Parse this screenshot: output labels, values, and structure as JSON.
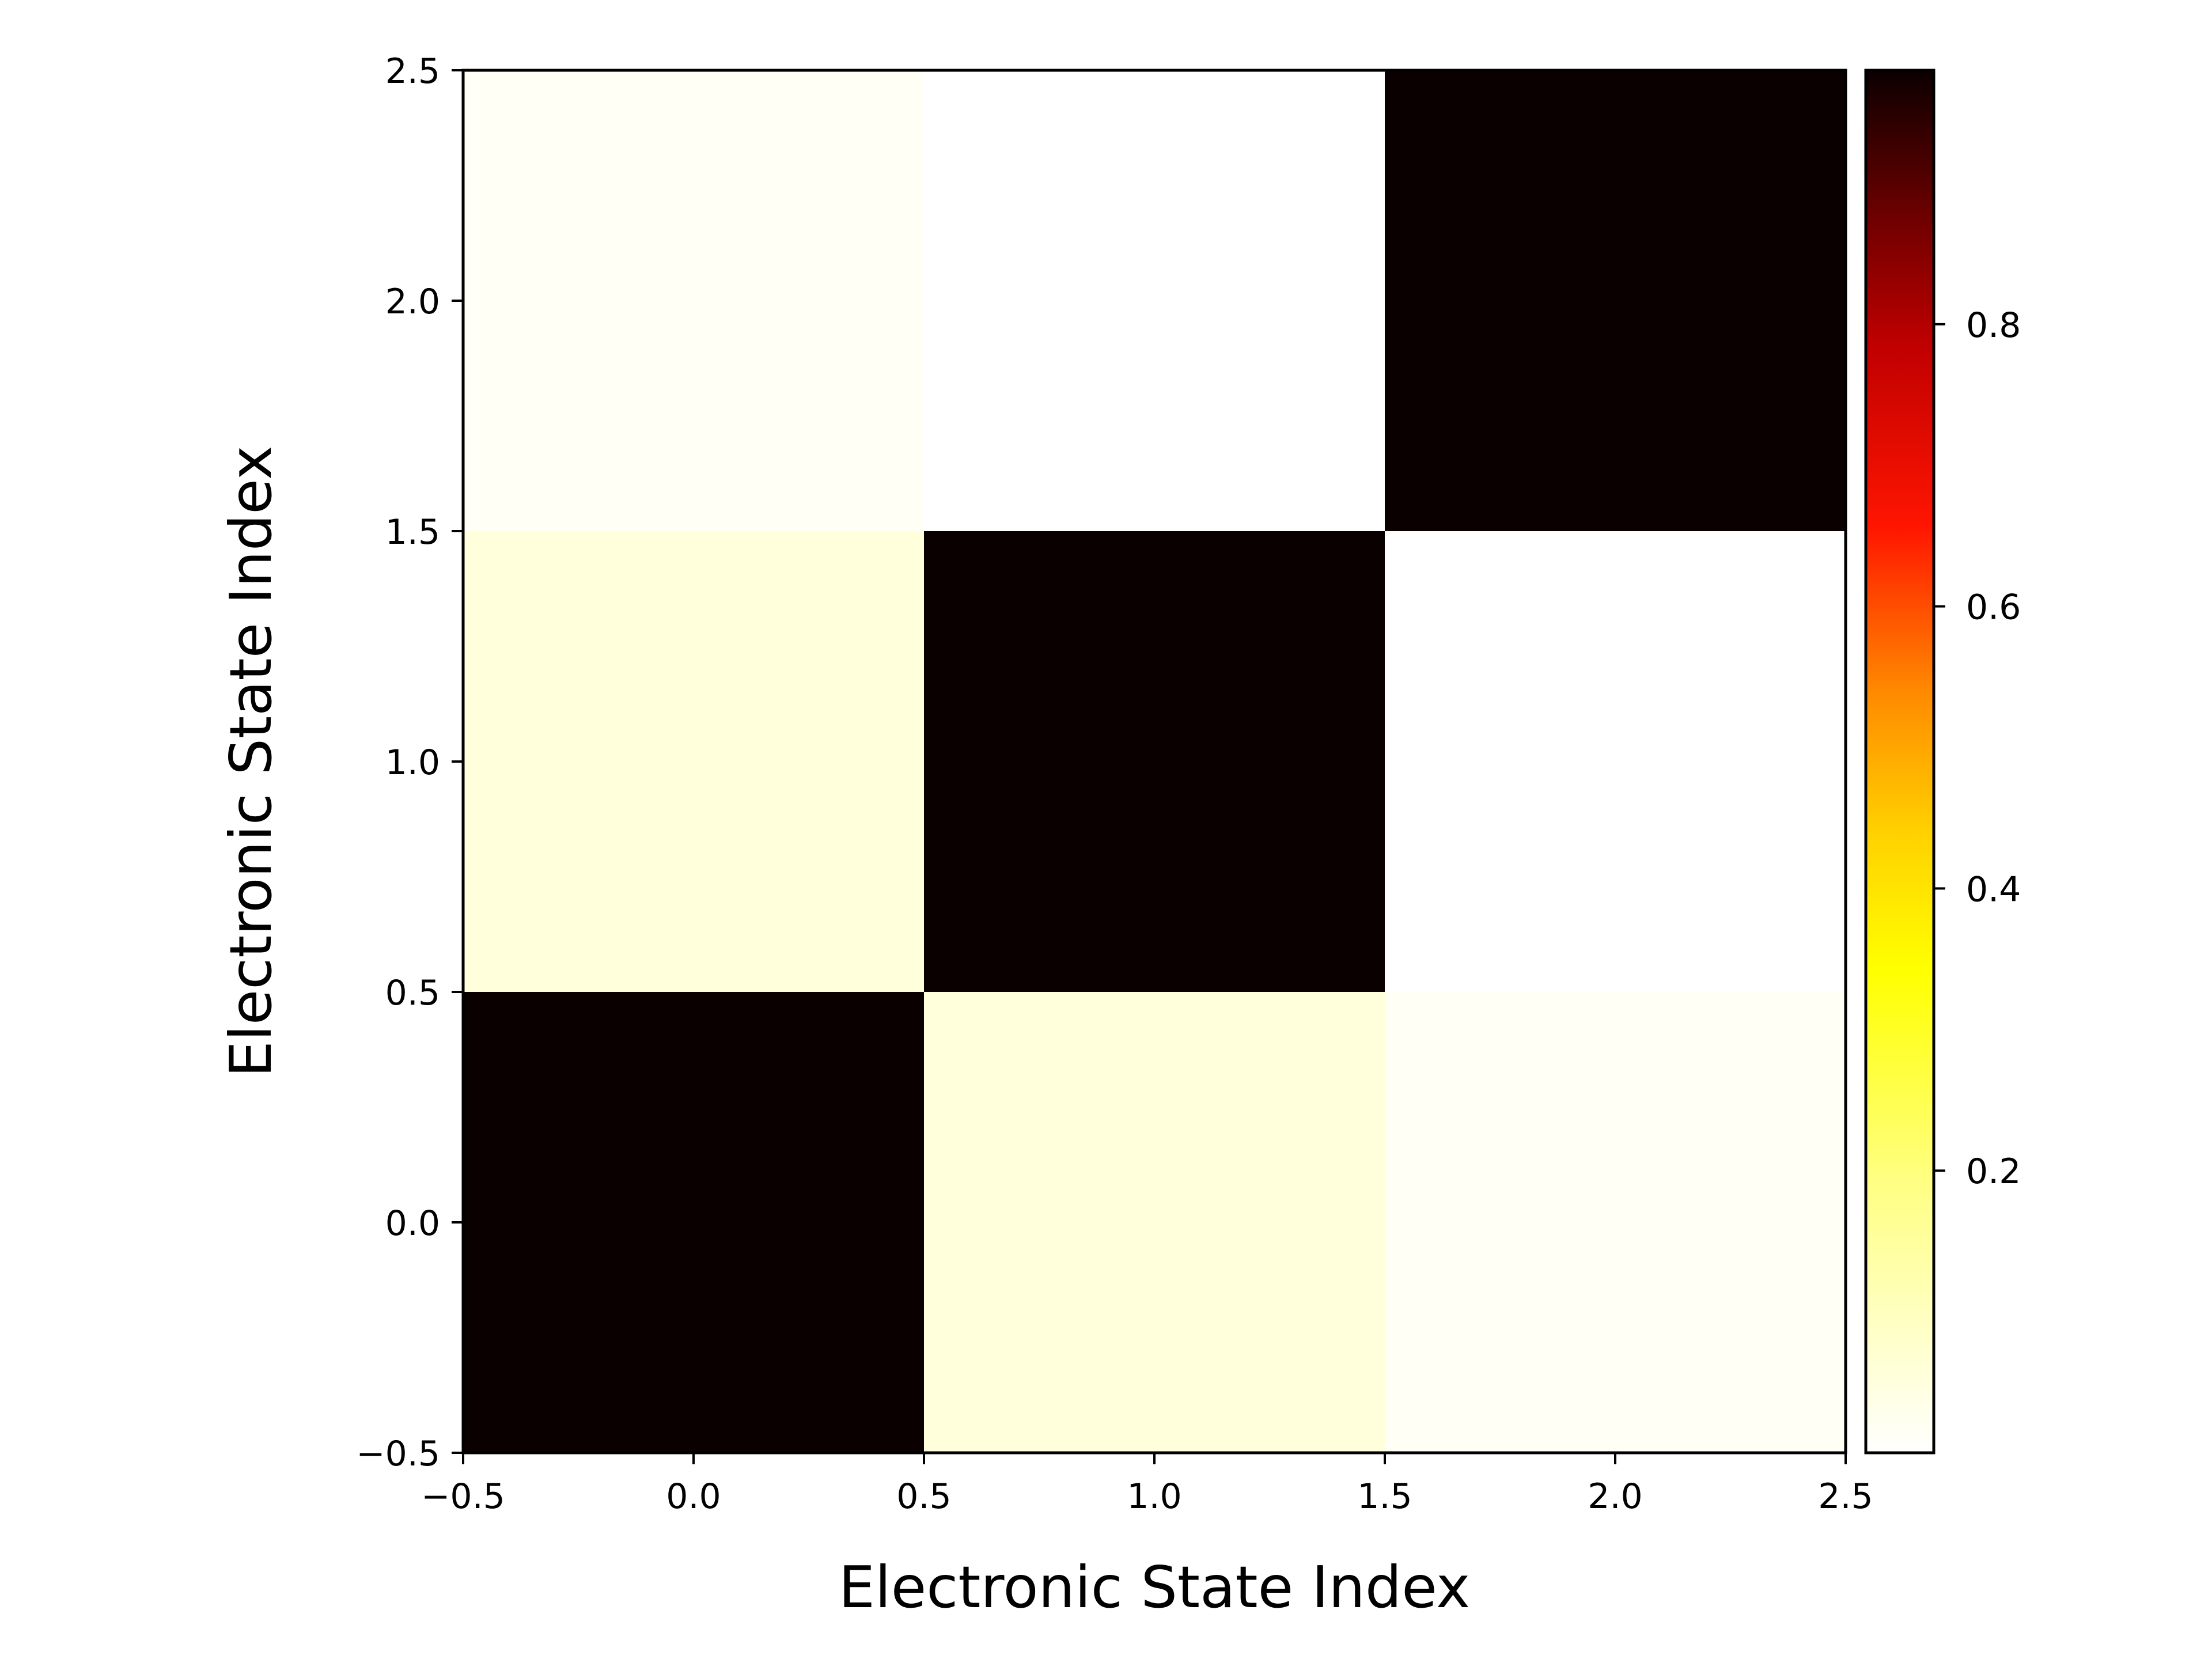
{
  "chart_data": {
    "type": "heatmap",
    "title": "",
    "xlabel": "Electronic State Index",
    "ylabel": "Electronic State Index",
    "x_categories": [
      0,
      1,
      2
    ],
    "y_categories": [
      0,
      1,
      2
    ],
    "xlim": [
      -0.5,
      2.5
    ],
    "ylim": [
      -0.5,
      2.5
    ],
    "origin": "lower",
    "values": [
      [
        0.98,
        0.035,
        0.01
      ],
      [
        0.035,
        0.98,
        0.0
      ],
      [
        0.01,
        0.0,
        0.98
      ]
    ],
    "x_ticks": [
      -0.5,
      0.0,
      0.5,
      1.0,
      1.5,
      2.0,
      2.5
    ],
    "x_tick_labels": [
      "−0.5",
      "0.0",
      "0.5",
      "1.0",
      "1.5",
      "2.0",
      "2.5"
    ],
    "y_ticks": [
      -0.5,
      0.0,
      0.5,
      1.0,
      1.5,
      2.0,
      2.5
    ],
    "y_tick_labels": [
      "−0.5",
      "0.0",
      "0.5",
      "1.0",
      "1.5",
      "2.0",
      "2.5"
    ],
    "colormap": "hot_r",
    "colorbar": {
      "vmin": 0.0,
      "vmax": 0.98,
      "ticks": [
        0.2,
        0.4,
        0.6,
        0.8
      ],
      "tick_labels": [
        "0.2",
        "0.4",
        "0.6",
        "0.8"
      ],
      "placement": "right"
    },
    "grid": false
  }
}
